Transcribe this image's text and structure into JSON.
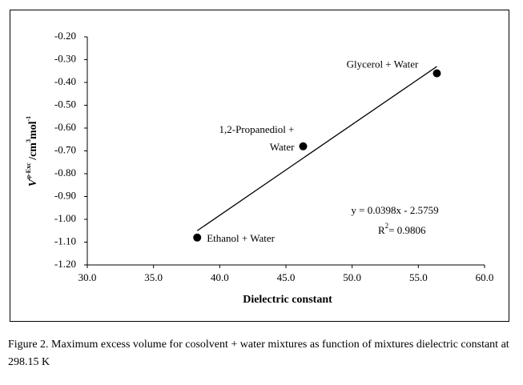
{
  "chart_data": {
    "type": "scatter",
    "x": [
      38.3,
      46.3,
      56.4
    ],
    "values": [
      -1.08,
      -0.68,
      -0.36
    ],
    "color": "#000000",
    "point_labels": [
      [
        "Ethanol + Water"
      ],
      [
        "1,2-Propanediol +",
        "Water"
      ],
      [
        "Glycerol + Water"
      ]
    ],
    "trendline": {
      "x": [
        38.3,
        56.4
      ],
      "values": [
        -1.05,
        -0.33
      ]
    },
    "equation": "y = 0.0398x - 2.5759",
    "r2": {
      "symbol": "R",
      "sup": "2",
      "text": "= 0.9806"
    },
    "xlabel": "Dielectric constant",
    "ylabel": {
      "symbol": "V",
      "symbol_sup": "φ-Exc",
      "unit": " /cm",
      "unit_sup": "3",
      "unit2": "mol",
      "unit2_sup": "-1"
    },
    "xlim": [
      30,
      60
    ],
    "xticks": [
      {
        "value": 30,
        "label": "30.0"
      },
      {
        "value": 35,
        "label": "35.0"
      },
      {
        "value": 40,
        "label": "40.0"
      },
      {
        "value": 45,
        "label": "45.0"
      },
      {
        "value": 50,
        "label": "50.0"
      },
      {
        "value": 55,
        "label": "55.0"
      },
      {
        "value": 60,
        "label": "60.0"
      }
    ],
    "ylim": [
      -1.2,
      -0.2
    ],
    "yticks": [
      {
        "value": -0.2,
        "label": "-0.20"
      },
      {
        "value": -0.3,
        "label": "-0.30"
      },
      {
        "value": -0.4,
        "label": "-0.40"
      },
      {
        "value": -0.5,
        "label": "-0.50"
      },
      {
        "value": -0.6,
        "label": "-0.60"
      },
      {
        "value": -0.7,
        "label": "-0.70"
      },
      {
        "value": -0.8,
        "label": "-0.80"
      },
      {
        "value": -0.9,
        "label": "-0.90"
      },
      {
        "value": -1.0,
        "label": "-1.00"
      },
      {
        "value": -1.1,
        "label": "-1.10"
      },
      {
        "value": -1.2,
        "label": "-1.20"
      }
    ]
  },
  "caption": "Figure 2. Maximum excess volume for cosolvent + water mixtures as function of mixtures dielectric constant at 298.15 K"
}
